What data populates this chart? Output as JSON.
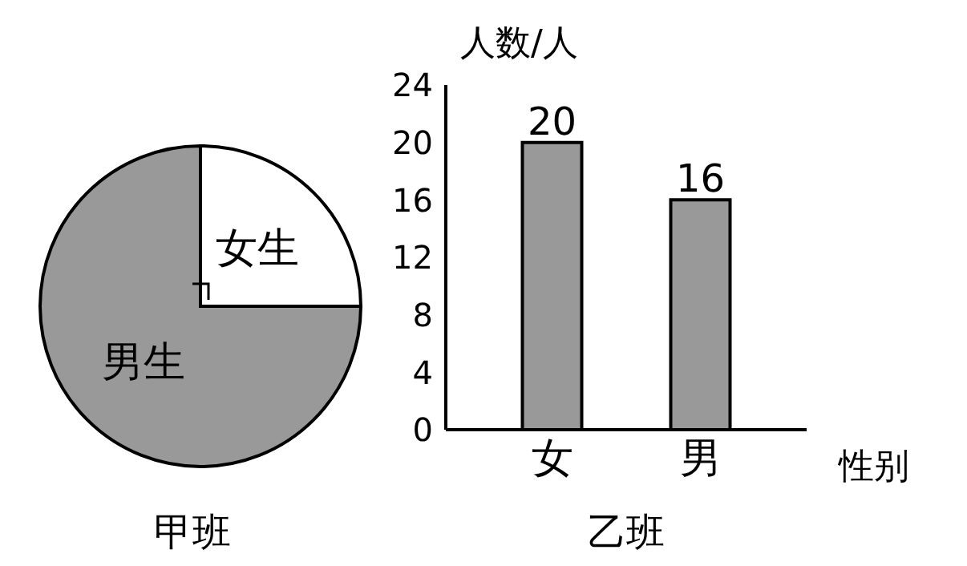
{
  "chart_data": [
    {
      "type": "pie",
      "title": "甲班",
      "categories": [
        "女生",
        "男生"
      ],
      "values": [
        25,
        75
      ],
      "colors": [
        "#ffffff",
        "#999999"
      ]
    },
    {
      "type": "bar",
      "title": "乙班",
      "xlabel": "性别",
      "ylabel": "人数/人",
      "categories": [
        "女",
        "男"
      ],
      "values": [
        20,
        16
      ],
      "color": "#999999",
      "ylim": [
        0,
        24
      ],
      "yticks": [
        0,
        4,
        8,
        12,
        16,
        20,
        24
      ],
      "data_labels": true
    }
  ]
}
